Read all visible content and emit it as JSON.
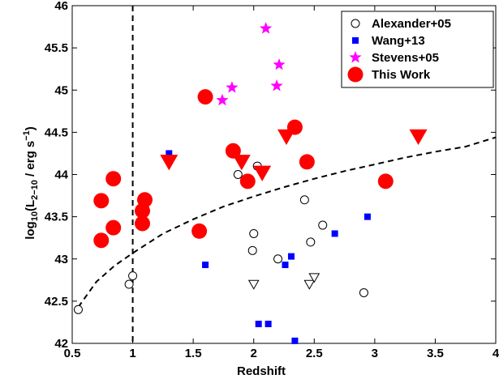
{
  "chart_data": {
    "type": "scatter",
    "title": "",
    "xlabel": "Redshift",
    "ylabel": {
      "prefix": "log",
      "log_sub": "10",
      "open": "(L",
      "lum_sub": "2−10",
      "unit": " / erg s",
      "exp": "−1",
      "close": ")"
    },
    "xlim": [
      0.5,
      4
    ],
    "ylim": [
      42,
      46
    ],
    "xticks": [
      0.5,
      1,
      1.5,
      2,
      2.5,
      3,
      3.5,
      4
    ],
    "xtick_labels": [
      "0.5",
      "1",
      "1.5",
      "2",
      "2.5",
      "3",
      "3.5",
      "4"
    ],
    "yticks": [
      42,
      42.5,
      43,
      43.5,
      44,
      44.5,
      45,
      45.5,
      46
    ],
    "ytick_labels": [
      "42",
      "42.5",
      "43",
      "43.5",
      "44",
      "44.5",
      "45",
      "45.5",
      "46"
    ],
    "grid": false,
    "legend_position": "top-right",
    "vertical_line": {
      "x": 1,
      "style": "dashed"
    },
    "threshold_curve": {
      "style": "dashed",
      "points": [
        [
          0.55,
          42.43
        ],
        [
          0.7,
          42.73
        ],
        [
          0.85,
          42.92
        ],
        [
          1.0,
          43.07
        ],
        [
          1.25,
          43.3
        ],
        [
          1.5,
          43.47
        ],
        [
          1.75,
          43.62
        ],
        [
          2.0,
          43.74
        ],
        [
          2.25,
          43.85
        ],
        [
          2.5,
          43.95
        ],
        [
          2.75,
          44.04
        ],
        [
          3.0,
          44.12
        ],
        [
          3.25,
          44.2
        ],
        [
          3.5,
          44.27
        ],
        [
          3.75,
          44.33
        ],
        [
          4.0,
          44.44
        ]
      ]
    },
    "series": [
      {
        "name": "Alexander+05",
        "marker": "open-circle",
        "color": "#000000",
        "points": [
          [
            0.55,
            42.4
          ],
          [
            0.97,
            42.7
          ],
          [
            1.0,
            42.8
          ],
          [
            1.87,
            44.0
          ],
          [
            2.03,
            44.1
          ],
          [
            2.0,
            43.3
          ],
          [
            1.99,
            43.1
          ],
          [
            2.2,
            43.0
          ],
          [
            2.42,
            43.7
          ],
          [
            2.47,
            43.2
          ],
          [
            2.57,
            43.4
          ],
          [
            2.91,
            42.6
          ]
        ]
      },
      {
        "name": "Wang+13",
        "marker": "filled-square",
        "color": "#0000ff",
        "points": [
          [
            1.3,
            44.25
          ],
          [
            1.6,
            42.93
          ],
          [
            2.04,
            42.23
          ],
          [
            2.12,
            42.23
          ],
          [
            2.26,
            42.93
          ],
          [
            2.31,
            43.03
          ],
          [
            2.34,
            42.03
          ],
          [
            2.67,
            43.3
          ],
          [
            2.94,
            43.5
          ]
        ]
      },
      {
        "name": "Stevens+05",
        "marker": "star",
        "color": "#ff00ff",
        "points": [
          [
            2.1,
            45.73
          ],
          [
            2.21,
            45.3
          ],
          [
            2.19,
            45.05
          ],
          [
            1.82,
            45.03
          ],
          [
            1.74,
            44.88
          ],
          [
            2.78,
            45.44
          ]
        ]
      },
      {
        "name": "This Work",
        "marker": "filled-circle",
        "color": "#ff0000",
        "points": [
          [
            0.74,
            43.69
          ],
          [
            0.74,
            43.22
          ],
          [
            0.84,
            43.95
          ],
          [
            0.84,
            43.37
          ],
          [
            1.08,
            43.57
          ],
          [
            1.08,
            43.42
          ],
          [
            1.1,
            43.7
          ],
          [
            1.55,
            43.33
          ],
          [
            1.6,
            44.92
          ],
          [
            1.83,
            44.28
          ],
          [
            1.95,
            43.92
          ],
          [
            2.34,
            44.56
          ],
          [
            2.44,
            44.15
          ],
          [
            3.09,
            43.92
          ]
        ]
      },
      {
        "marker": "open-triangle-down",
        "color": "#000000",
        "points": [
          [
            2.0,
            42.7
          ],
          [
            2.46,
            42.7
          ],
          [
            2.5,
            42.78
          ]
        ]
      },
      {
        "marker": "filled-triangle-down",
        "color": "#ff0000",
        "points": [
          [
            1.3,
            44.15
          ],
          [
            1.9,
            44.15
          ],
          [
            2.07,
            44.02
          ],
          [
            2.27,
            44.45
          ],
          [
            3.36,
            44.45
          ]
        ]
      }
    ]
  }
}
